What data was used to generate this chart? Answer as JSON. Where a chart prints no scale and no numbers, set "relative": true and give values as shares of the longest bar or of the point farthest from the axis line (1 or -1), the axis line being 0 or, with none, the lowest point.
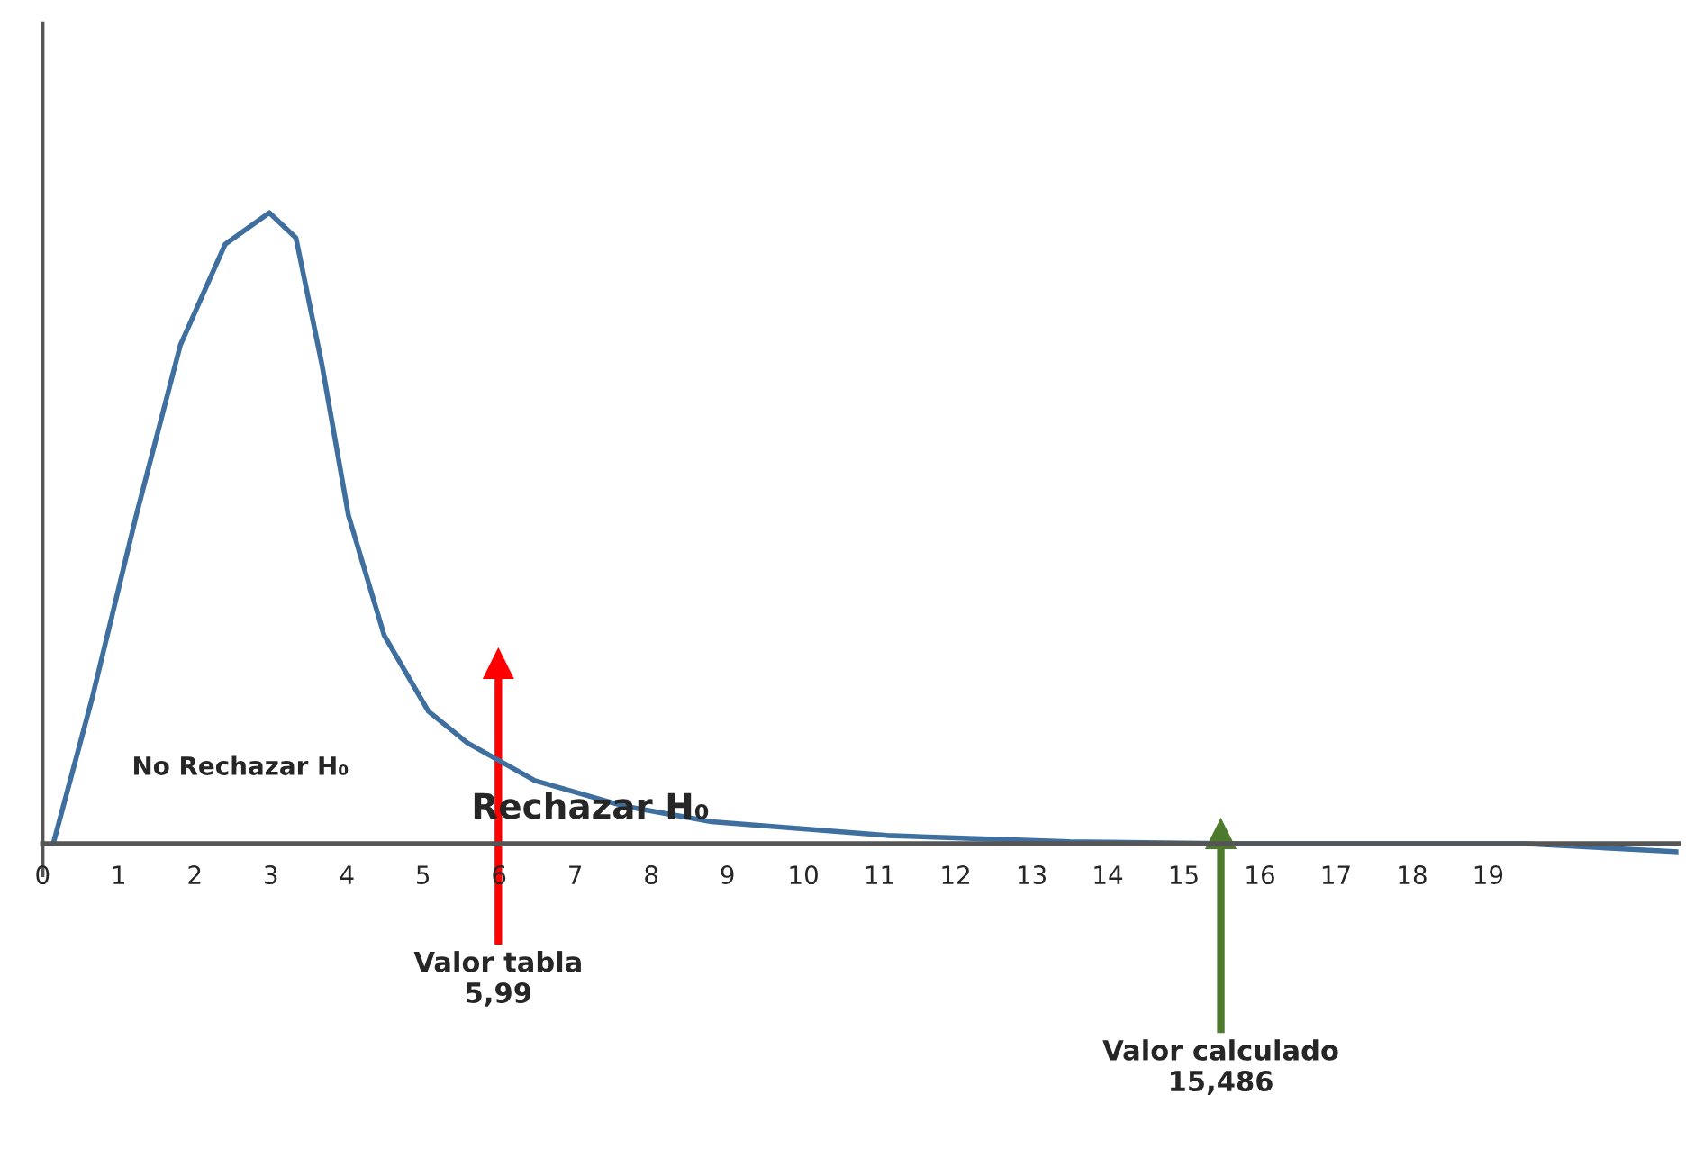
{
  "chart_data": {
    "type": "line",
    "relative": true,
    "x": [
      0.14,
      0.65,
      1.23,
      1.81,
      2.4,
      2.98,
      3.33,
      3.67,
      4.02,
      4.49,
      5.07,
      5.58,
      6.47,
      7.63,
      8.79,
      11.1,
      13.5,
      15.8,
      19.5,
      21.5
    ],
    "series": [
      {
        "color": "#3f6f9f",
        "values": [
          0,
          0.23,
          0.52,
          0.79,
          0.95,
          1.0,
          0.96,
          0.76,
          0.52,
          0.33,
          0.21,
          0.16,
          0.1,
          0.06,
          0.035,
          0.013,
          0.003,
          0,
          0,
          -0.013
        ]
      }
    ],
    "xlim": [
      0,
      21.5
    ],
    "xticks": [
      0,
      1,
      2,
      3,
      4,
      5,
      6,
      7,
      8,
      9,
      10,
      11,
      12,
      13,
      14,
      15,
      16,
      17,
      18,
      19
    ],
    "ref_lines": [
      {
        "axis": "x",
        "value": 5.99,
        "label": "Valor tabla\n5,99",
        "color": "#ff0000"
      },
      {
        "axis": "x",
        "value": 15.486,
        "label": "Valor calculado\n15,486",
        "color": "#4e7a2e"
      }
    ],
    "annotations": [
      "No Rechazar H₀",
      "Rechazar H₀"
    ],
    "grid": false,
    "legend": false,
    "marker": "none",
    "line_style": "solid"
  }
}
